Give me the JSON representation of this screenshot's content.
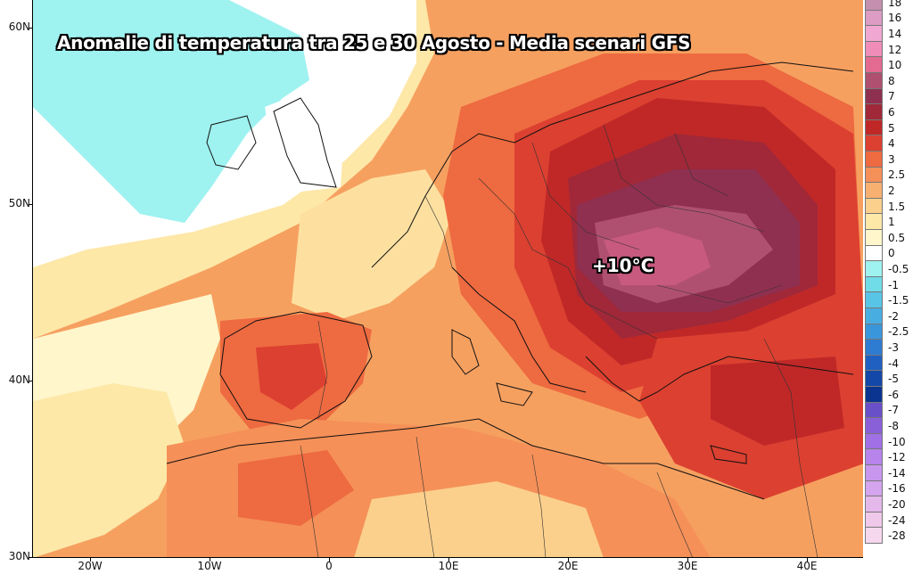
{
  "title": "Anomalie di temperatura tra 25 e 30 Agosto - Media scenari GFS",
  "peak_annotation": "+10°C",
  "latitude_labels": [
    "60N",
    "50N",
    "40N",
    "30N"
  ],
  "longitude_labels": [
    "20W",
    "10W",
    "0",
    "10E",
    "20E",
    "30E",
    "40E"
  ],
  "legend": {
    "entries": [
      {
        "label": "18",
        "color": "#c58fb0"
      },
      {
        "label": "16",
        "color": "#dc9cc4"
      },
      {
        "label": "14",
        "color": "#f0a8d2"
      },
      {
        "label": "12",
        "color": "#f08cb8"
      },
      {
        "label": "10",
        "color": "#e36a90"
      },
      {
        "label": "8",
        "color": "#b05070"
      },
      {
        "label": "7",
        "color": "#903050"
      },
      {
        "label": "6",
        "color": "#a02838"
      },
      {
        "label": "5",
        "color": "#c02828"
      },
      {
        "label": "4",
        "color": "#dc4030"
      },
      {
        "label": "3",
        "color": "#ee6a40"
      },
      {
        "label": "2.5",
        "color": "#f59058"
      },
      {
        "label": "2",
        "color": "#f8b070"
      },
      {
        "label": "1.5",
        "color": "#fbd08c"
      },
      {
        "label": "1",
        "color": "#fde8a8"
      },
      {
        "label": "0.5",
        "color": "#fff6cc"
      },
      {
        "label": "0",
        "color": "#ffffff"
      },
      {
        "label": "-0.5",
        "color": "#9ef2f0"
      },
      {
        "label": "-1",
        "color": "#70dce8"
      },
      {
        "label": "-1.5",
        "color": "#58c4e6"
      },
      {
        "label": "-2",
        "color": "#48aee2"
      },
      {
        "label": "-2.5",
        "color": "#3a96da"
      },
      {
        "label": "-3",
        "color": "#2e7cd2"
      },
      {
        "label": "-4",
        "color": "#2060c0"
      },
      {
        "label": "-5",
        "color": "#1448a8"
      },
      {
        "label": "-6",
        "color": "#0a3490"
      },
      {
        "label": "-7",
        "color": "#6a50c8"
      },
      {
        "label": "-8",
        "color": "#8a60d8"
      },
      {
        "label": "-10",
        "color": "#a070e4"
      },
      {
        "label": "-12",
        "color": "#b684ea"
      },
      {
        "label": "-14",
        "color": "#c896ee"
      },
      {
        "label": "-16",
        "color": "#d4a4ee"
      },
      {
        "label": "-20",
        "color": "#e4b8ea"
      },
      {
        "label": "-24",
        "color": "#f0c8ea"
      },
      {
        "label": "-28",
        "color": "#f6d8ee"
      }
    ]
  }
}
